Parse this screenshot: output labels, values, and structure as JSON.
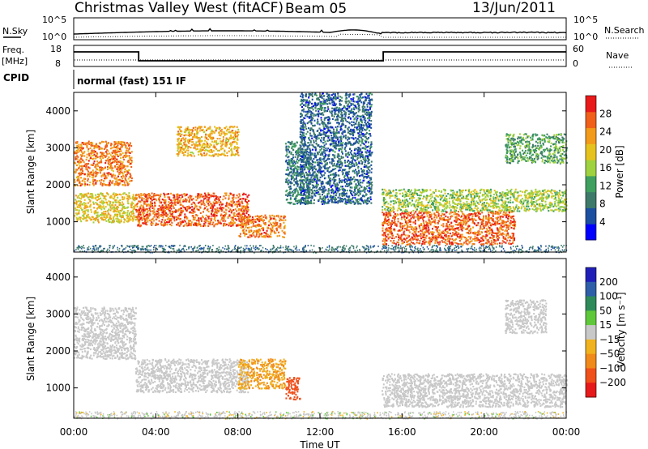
{
  "header": {
    "title": "Christmas Valley West (fitACF)",
    "beam": "Beam 05",
    "date": "13/Jun/2011"
  },
  "summary": {
    "nsky_label": "N.Sky",
    "nsky_ticks": [
      "10^5",
      "10^0"
    ],
    "nsearch_label": "N.Search",
    "nsearch_ticks": [
      "10^5",
      "10^0"
    ],
    "freq_label": "Freq.",
    "freq_unit": "[MHz]",
    "freq_ticks": [
      18,
      8
    ],
    "nave_label": "Nave",
    "nave_ticks": [
      60,
      0
    ],
    "cpid_label": "CPID",
    "cpid_text": "normal (fast) 151 IF",
    "freq_trace": [
      {
        "start": "00:00",
        "end": "03:10",
        "level": "high"
      },
      {
        "start": "03:10",
        "end": "15:05",
        "level": "low"
      },
      {
        "start": "15:05",
        "end": "24:00",
        "level": "high"
      }
    ]
  },
  "colors": {
    "power": [
      "#0000ff",
      "#1c4fa0",
      "#3d7a6a",
      "#3fa060",
      "#9fd23f",
      "#e6c21e",
      "#f29a1a",
      "#f0601a",
      "#e81a1a"
    ],
    "velocity": [
      "#1f1fb8",
      "#2f5fa8",
      "#2f8a5a",
      "#5fc83a",
      "#c8c8c8",
      "#f0b21e",
      "#f08a1a",
      "#f0501a",
      "#e61a1a"
    ]
  },
  "chart_data": [
    {
      "type": "heatmap",
      "name": "power",
      "xlabel": "Time UT",
      "ylabel": "Slant Range [km]",
      "x_ticks": [
        "00:00",
        "04:00",
        "08:00",
        "12:00",
        "16:00",
        "20:00",
        "00:00"
      ],
      "y_ticks": [
        1000,
        2000,
        3000,
        4000
      ],
      "xlim_hours": [
        0,
        24
      ],
      "ylim": [
        180,
        4500
      ],
      "colorbar": {
        "label": "Power [dB]",
        "ticks": [
          4,
          8,
          12,
          16,
          20,
          24,
          28
        ],
        "range": [
          0,
          32
        ]
      },
      "scatter_regions": [
        {
          "t0": 0.0,
          "t1": 2.8,
          "r0": 2000,
          "r1": 3200,
          "power": 26
        },
        {
          "t0": 0.0,
          "t1": 3.0,
          "r0": 1000,
          "r1": 1800,
          "power": 20
        },
        {
          "t0": 3.0,
          "t1": 8.5,
          "r0": 900,
          "r1": 1800,
          "power": 28
        },
        {
          "t0": 8.0,
          "t1": 10.3,
          "r0": 600,
          "r1": 1200,
          "power": 26
        },
        {
          "t0": 5.0,
          "t1": 8.0,
          "r0": 2800,
          "r1": 3600,
          "power": 22
        },
        {
          "t0": 10.3,
          "t1": 11.5,
          "r0": 1500,
          "r1": 3200,
          "power": 8
        },
        {
          "t0": 11.0,
          "t1": 14.5,
          "r0": 1500,
          "r1": 4500,
          "power": 6
        },
        {
          "t0": 15.0,
          "t1": 21.5,
          "r0": 400,
          "r1": 1300,
          "power": 28
        },
        {
          "t0": 15.0,
          "t1": 24.0,
          "r0": 1300,
          "r1": 1900,
          "power": 16
        },
        {
          "t0": 21.0,
          "t1": 24.0,
          "r0": 2600,
          "r1": 3400,
          "power": 12
        }
      ]
    },
    {
      "type": "heatmap",
      "name": "velocity",
      "xlabel": "Time UT",
      "ylabel": "Slant Range [km]",
      "x_ticks": [
        "00:00",
        "04:00",
        "08:00",
        "12:00",
        "16:00",
        "20:00",
        "00:00"
      ],
      "y_ticks": [
        1000,
        2000,
        3000,
        4000
      ],
      "xlim_hours": [
        0,
        24
      ],
      "ylim": [
        180,
        4500
      ],
      "colorbar": {
        "label": "Velocity [m s⁻¹]",
        "ticks": [
          200,
          100,
          50,
          15,
          -15,
          -50,
          -100,
          -200
        ]
      },
      "scatter_regions": [
        {
          "t0": 0.0,
          "t1": 3.0,
          "r0": 1800,
          "r1": 3200,
          "velocity": 0
        },
        {
          "t0": 3.0,
          "t1": 8.5,
          "r0": 900,
          "r1": 1800,
          "velocity": 0
        },
        {
          "t0": 8.0,
          "t1": 10.3,
          "r0": 1000,
          "r1": 1800,
          "velocity": -50
        },
        {
          "t0": 10.3,
          "t1": 11.0,
          "r0": 700,
          "r1": 1300,
          "velocity": -120
        },
        {
          "t0": 15.0,
          "t1": 24.0,
          "r0": 500,
          "r1": 1400,
          "velocity": 0
        },
        {
          "t0": 21.0,
          "t1": 23.0,
          "r0": 2500,
          "r1": 3400,
          "velocity": 0
        }
      ]
    }
  ]
}
